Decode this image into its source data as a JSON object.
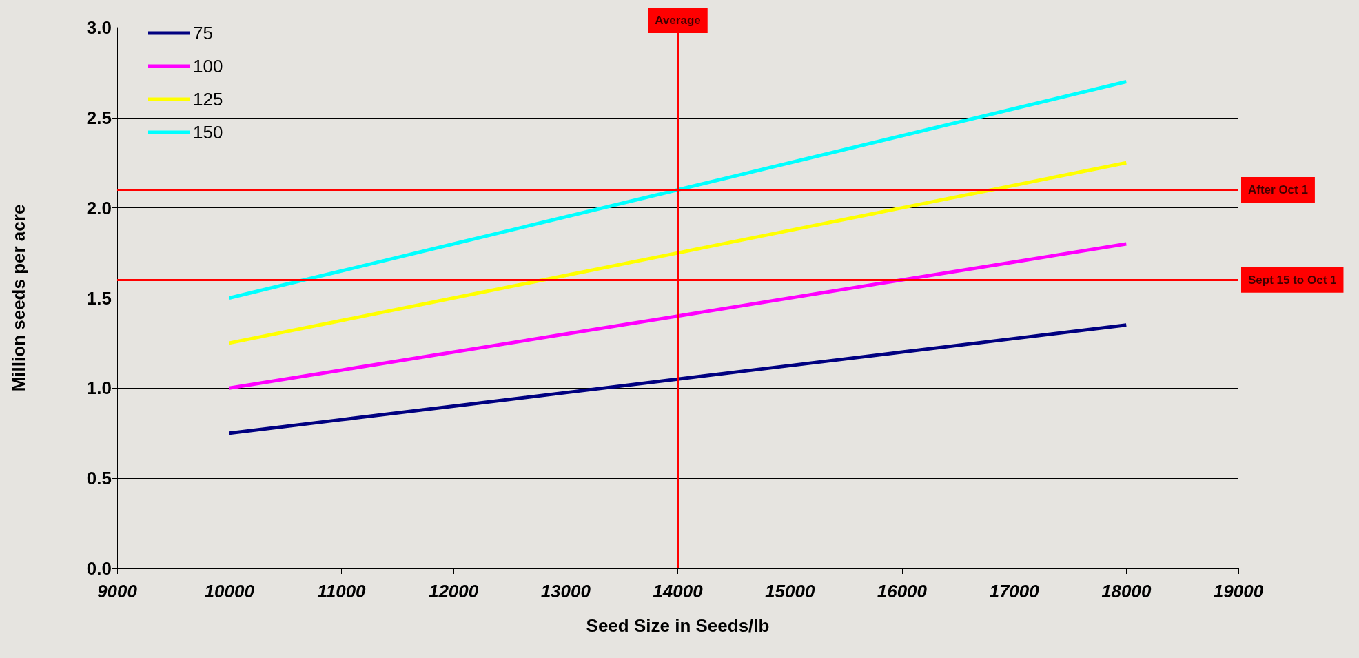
{
  "chart_data": {
    "type": "line",
    "xlabel": "Seed Size in Seeds/lb",
    "ylabel": "Million seeds per acre",
    "x": [
      10000,
      11000,
      12000,
      13000,
      14000,
      15000,
      16000,
      17000,
      18000
    ],
    "series": [
      {
        "name": "75",
        "color": "#000080",
        "values": [
          0.75,
          0.825,
          0.9,
          0.975,
          1.05,
          1.125,
          1.2,
          1.275,
          1.35
        ]
      },
      {
        "name": "100",
        "color": "#ff00ff",
        "values": [
          1.0,
          1.1,
          1.2,
          1.3,
          1.4,
          1.5,
          1.6,
          1.7,
          1.8
        ]
      },
      {
        "name": "125",
        "color": "#ffff00",
        "values": [
          1.25,
          1.375,
          1.5,
          1.625,
          1.75,
          1.875,
          2.0,
          2.125,
          2.25
        ]
      },
      {
        "name": "150",
        "color": "#00ffff",
        "values": [
          1.5,
          1.65,
          1.8,
          1.95,
          2.1,
          2.25,
          2.4,
          2.55,
          2.7
        ]
      }
    ],
    "xlim": [
      9000,
      19000
    ],
    "xticks": [
      9000,
      10000,
      11000,
      12000,
      13000,
      14000,
      15000,
      16000,
      17000,
      18000,
      19000
    ],
    "ylim": [
      0,
      3
    ],
    "yticks": [
      {
        "value": 0,
        "label": "0.0"
      },
      {
        "value": 0.5,
        "label": "0.5"
      },
      {
        "value": 1,
        "label": "1.0"
      },
      {
        "value": 1.5,
        "label": "1.5"
      },
      {
        "value": 2,
        "label": "2.0"
      },
      {
        "value": 2.5,
        "label": "2.5"
      },
      {
        "value": 3,
        "label": "3.0"
      }
    ],
    "ref_lines": [
      {
        "axis": "x",
        "value": 14000,
        "label": "Average",
        "color": "#ff0000"
      },
      {
        "axis": "y",
        "value": 2.1,
        "label": "After Oct 1",
        "color": "#ff0000"
      },
      {
        "axis": "y",
        "value": 1.6,
        "label": "Sept 15 to Oct 1",
        "color": "#ff0000"
      }
    ],
    "grid": "y",
    "legend": "top left",
    "marker": "none",
    "line_style": "solid"
  }
}
